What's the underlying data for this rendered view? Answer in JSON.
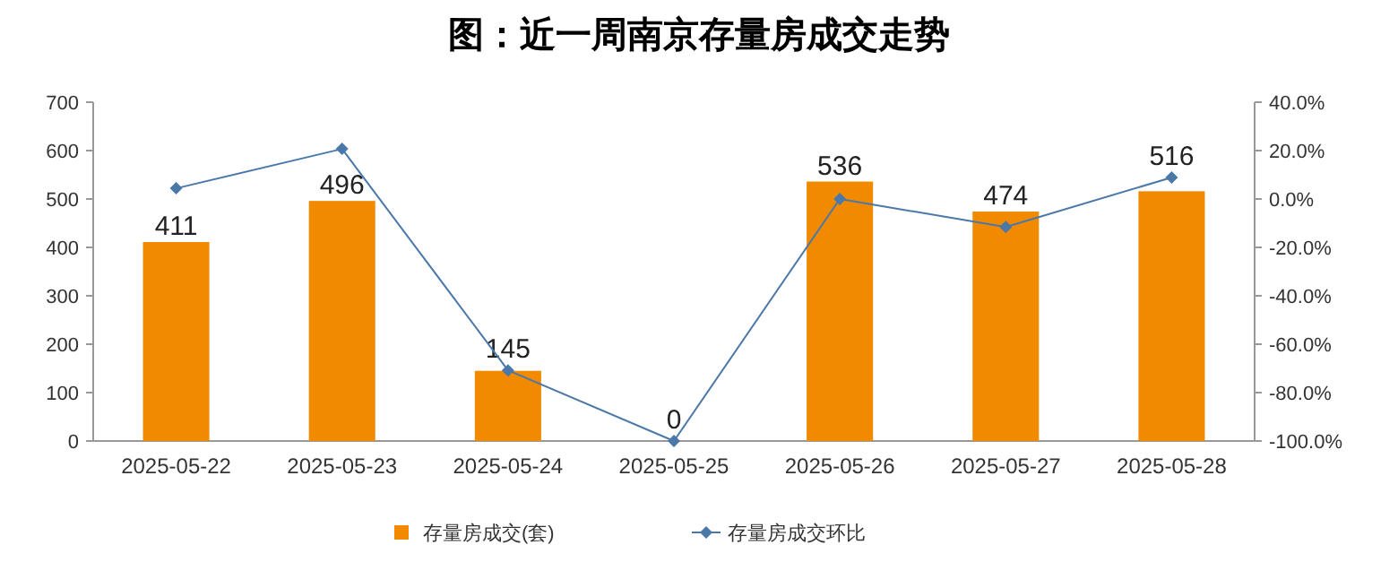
{
  "chart_data": {
    "type": "bar",
    "title": "图：近一周南京存量房成交走势",
    "categories": [
      "2025-05-22",
      "2025-05-23",
      "2025-05-24",
      "2025-05-25",
      "2025-05-26",
      "2025-05-27",
      "2025-05-28"
    ],
    "series": [
      {
        "name": "存量房成交(套)",
        "color": "#f28a00",
        "values": [
          411,
          496,
          145,
          0,
          536,
          474,
          516
        ],
        "data_labels": true
      },
      {
        "name": "存量房成交环比",
        "type": "line",
        "axis": "y2",
        "color": "#4a78a8",
        "marker": "diamond",
        "values": [
          4.4,
          20.7,
          -70.8,
          -100,
          0,
          -11.6,
          8.9
        ]
      }
    ],
    "ylim": [
      0,
      700
    ],
    "yticks": [
      0,
      100,
      200,
      300,
      400,
      500,
      600,
      700
    ],
    "y2lim": [
      -100,
      40
    ],
    "y2ticks": [
      {
        "value": -100,
        "label": "-100.0%"
      },
      {
        "value": -80,
        "label": "-80.0%"
      },
      {
        "value": -60,
        "label": "-60.0%"
      },
      {
        "value": -40,
        "label": "-40.0%"
      },
      {
        "value": -20,
        "label": "-20.0%"
      },
      {
        "value": 0,
        "label": "0.0%"
      },
      {
        "value": 20,
        "label": "20.0%"
      },
      {
        "value": 40,
        "label": "40.0%"
      }
    ],
    "grid": false,
    "legend": "bottom"
  }
}
